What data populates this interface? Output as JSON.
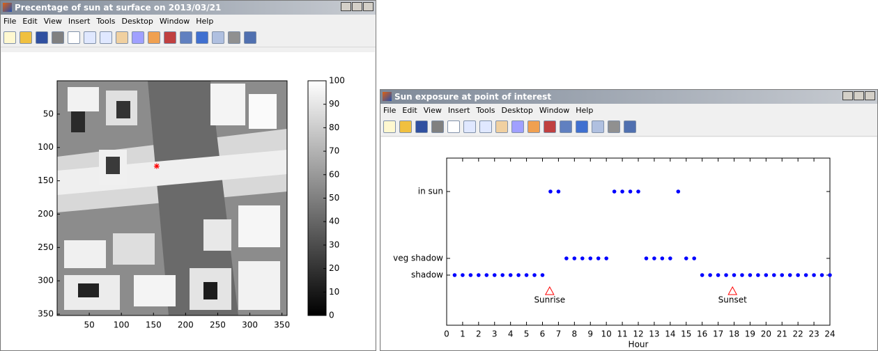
{
  "windows": [
    {
      "title": "Precentage of sun at surface on 2013/03/21",
      "menu": [
        "File",
        "Edit",
        "View",
        "Insert",
        "Tools",
        "Desktop",
        "Window",
        "Help"
      ],
      "chart_data": {
        "type": "heatmap",
        "colormap": "gray",
        "xlim": [
          0,
          358
        ],
        "ylim": [
          0,
          352
        ],
        "y_reversed": true,
        "xticks": [
          50,
          100,
          150,
          200,
          250,
          300,
          350
        ],
        "yticks": [
          50,
          100,
          150,
          200,
          250,
          300,
          350
        ],
        "colorbar": {
          "lim": [
            0,
            100
          ],
          "ticks": [
            0,
            10,
            20,
            30,
            40,
            50,
            60,
            70,
            80,
            90,
            100
          ]
        },
        "marker": {
          "x": 155,
          "y": 128,
          "color": "#ff0000"
        }
      }
    },
    {
      "title": "Sun exposure at point of interest",
      "menu": [
        "File",
        "Edit",
        "View",
        "Insert",
        "Tools",
        "Desktop",
        "Window",
        "Help"
      ],
      "chart_data": {
        "type": "scatter",
        "color": "#0000ff",
        "xlabel": "Hour",
        "xlim": [
          0,
          24
        ],
        "ylim": [
          -2,
          8
        ],
        "xticks": [
          0,
          1,
          2,
          3,
          4,
          5,
          6,
          7,
          8,
          9,
          10,
          11,
          12,
          13,
          14,
          15,
          16,
          17,
          18,
          19,
          20,
          21,
          22,
          23,
          24
        ],
        "yticks": [
          {
            "value": 1,
            "label": "shadow"
          },
          {
            "value": 2,
            "label": "veg shadow"
          },
          {
            "value": 6,
            "label": "in sun"
          }
        ],
        "x": [
          0.5,
          1,
          1.5,
          2,
          2.5,
          3,
          3.5,
          4,
          4.5,
          5,
          5.5,
          6,
          6.5,
          7,
          7.5,
          8,
          8.5,
          9,
          9.5,
          10,
          10.5,
          11,
          11.5,
          12,
          12.5,
          13,
          13.5,
          14,
          14.5,
          15,
          15.5,
          16,
          16.5,
          17,
          17.5,
          18,
          18.5,
          19,
          19.5,
          20,
          20.5,
          21,
          21.5,
          22,
          22.5,
          23,
          23.5,
          24
        ],
        "values": [
          1,
          1,
          1,
          1,
          1,
          1,
          1,
          1,
          1,
          1,
          1,
          1,
          6,
          6,
          2,
          2,
          2,
          2,
          2,
          2,
          6,
          6,
          6,
          6,
          2,
          2,
          2,
          2,
          6,
          2,
          2,
          1,
          1,
          1,
          1,
          1,
          1,
          1,
          1,
          1,
          1,
          1,
          1,
          1,
          1,
          1,
          1,
          1
        ],
        "annotations": [
          {
            "label": "Sunrise",
            "x": 6.45,
            "y": 0,
            "color": "#ff0000"
          },
          {
            "label": "Sunset",
            "x": 17.9,
            "y": 0,
            "color": "#ff0000"
          }
        ]
      }
    }
  ]
}
